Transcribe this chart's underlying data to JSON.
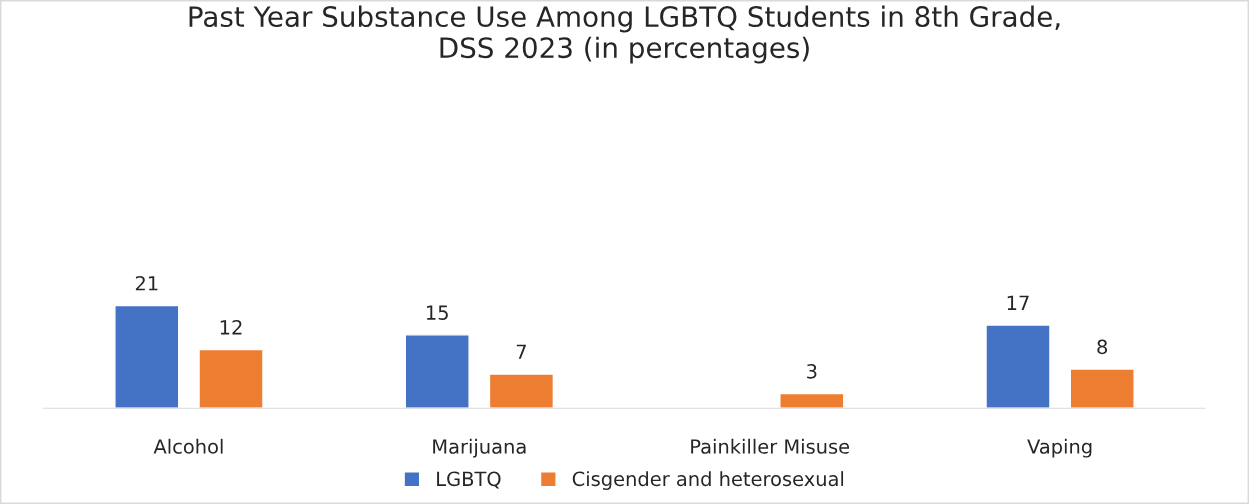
{
  "chart_data": {
    "type": "bar",
    "title": "Past Year Substance Use Among LGBTQ Students in 8th Grade,\nDSS 2023 (in percentages)",
    "categories": [
      "Alcohol",
      "Marijuana",
      "Painkiller Misuse",
      "Vaping"
    ],
    "series": [
      {
        "name": "LGBTQ",
        "color": "#4472c4",
        "values": [
          21,
          15,
          null,
          17
        ]
      },
      {
        "name": "Cisgender and heterosexual",
        "color": "#ed7d31",
        "values": [
          12,
          7,
          3,
          8
        ]
      }
    ],
    "tick_labels": "x",
    "data_labels": true,
    "grid": false,
    "legend": "bottom"
  }
}
